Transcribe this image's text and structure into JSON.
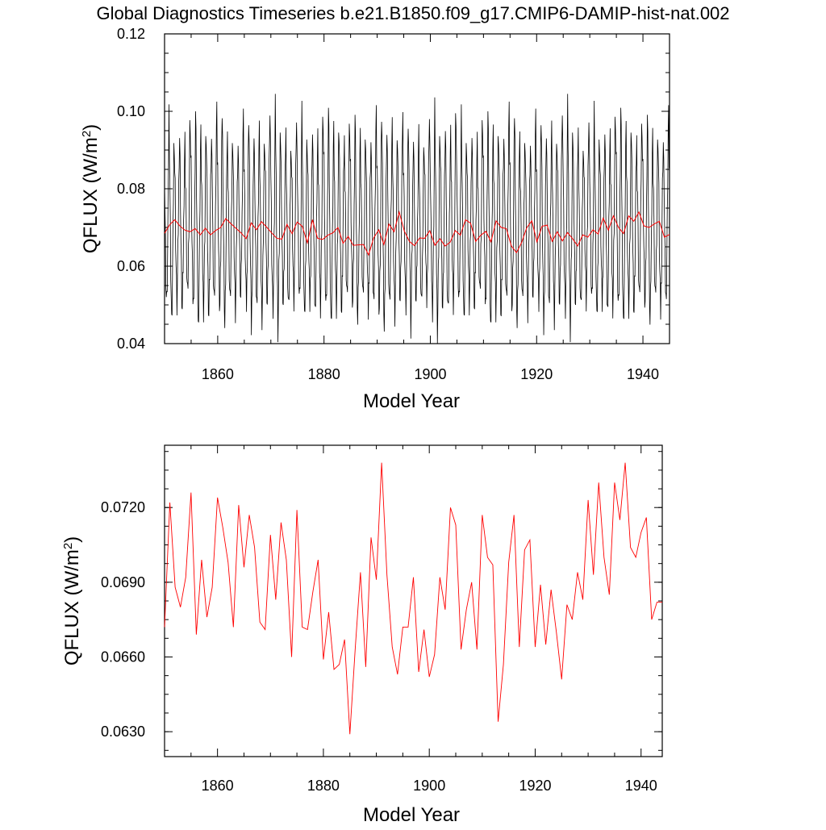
{
  "title": "Global Diagnostics Timeseries b.e21.B1850.f09_g17.CMIP6-DAMIP-hist-nat.002",
  "chart_data": [
    {
      "type": "line",
      "ylabel_main": "QFLUX (W/m",
      "ylabel_sup": "2",
      "ylabel_close": ")",
      "xlabel": "Model Year",
      "xlim": [
        1850,
        1945
      ],
      "ylim": [
        0.04,
        0.12
      ],
      "x_ticks": [
        "1860",
        "1880",
        "1900",
        "1920",
        "1940"
      ],
      "y_ticks": [
        "0.04",
        "0.06",
        "0.08",
        "0.10",
        "0.12"
      ],
      "grid": false,
      "series": [
        {
          "color": "#000000",
          "note_resolution": "monthly",
          "values": [
            0.085,
            0.075,
            0.065,
            0.058,
            0.052,
            0.05,
            0.056,
            0.064,
            0.074,
            0.088,
            0.1,
            0.092,
            0.082,
            0.07,
            0.06,
            0.052,
            0.044,
            0.05,
            0.058,
            0.066,
            0.078,
            0.09,
            0.093,
            0.085,
            0.08,
            0.068,
            0.06,
            0.054,
            0.05,
            0.055,
            0.062,
            0.07,
            0.08,
            0.09,
            0.094,
            0.086,
            0.078,
            0.066,
            0.058,
            0.052,
            0.048,
            0.054,
            0.06,
            0.07,
            0.08,
            0.088,
            0.092,
            0.084,
            0.08,
            0.068,
            0.06,
            0.055,
            0.051,
            0.056,
            0.064,
            0.072,
            0.084,
            0.095,
            0.098,
            0.088
          ],
          "red_annual_overlay": true
        },
        {
          "color": "#ff0000",
          "values": [
            0.0685,
            0.0707,
            0.072,
            0.0704,
            0.0693,
            0.0689,
            0.0697,
            0.0681,
            0.0698,
            0.0681,
            0.0692,
            0.07,
            0.0723,
            0.071,
            0.0698,
            0.0686,
            0.0671,
            0.0712,
            0.0694,
            0.0715,
            0.0701,
            0.0686,
            0.0672,
            0.067,
            0.0708,
            0.0684,
            0.0714,
            0.0703,
            0.066,
            0.072,
            0.0672,
            0.0669,
            0.068,
            0.0686,
            0.07,
            0.0659,
            0.0677,
            0.0654,
            0.0655,
            0.0656,
            0.0629,
            0.0673,
            0.0694,
            0.0656,
            0.0709,
            0.0689,
            0.074,
            0.0691,
            0.0664,
            0.0653,
            0.0673,
            0.0672,
            0.0692,
            0.0654,
            0.0671,
            0.0652,
            0.0662,
            0.0692,
            0.068,
            0.072,
            0.0711,
            0.0664,
            0.068,
            0.069,
            0.0663,
            0.0717,
            0.07,
            0.0697,
            0.0652,
            0.0635,
            0.0661,
            0.0699,
            0.0717,
            0.0663,
            0.0703,
            0.0706,
            0.0664,
            0.0689,
            0.0665,
            0.0687,
            0.0671,
            0.0652,
            0.0681,
            0.0675,
            0.0694,
            0.0683,
            0.0724,
            0.0693,
            0.073,
            0.07,
            0.0684,
            0.073,
            0.0716,
            0.074,
            0.0704,
            0.07,
            0.0709,
            0.0716,
            0.0675,
            0.0682
          ]
        }
      ]
    },
    {
      "type": "line",
      "ylabel_main": "QFLUX (W/m",
      "ylabel_sup": "2",
      "ylabel_close": ")",
      "xlabel": "Model Year",
      "xlim": [
        1850,
        1944
      ],
      "ylim": [
        0.062,
        0.0745
      ],
      "x_ticks": [
        "1860",
        "1880",
        "1900",
        "1920",
        "1940"
      ],
      "y_ticks": [
        "0.0630",
        "0.0660",
        "0.0690",
        "0.0720"
      ],
      "grid": false,
      "series": [
        {
          "color": "#ff0000",
          "x": [
            1850,
            1851,
            1852,
            1853,
            1854,
            1855,
            1856,
            1857,
            1858,
            1859,
            1860,
            1861,
            1862,
            1863,
            1864,
            1865,
            1866,
            1867,
            1868,
            1869,
            1870,
            1871,
            1872,
            1873,
            1874,
            1875,
            1876,
            1877,
            1878,
            1879,
            1880,
            1881,
            1882,
            1883,
            1884,
            1885,
            1886,
            1887,
            1888,
            1889,
            1890,
            1891,
            1892,
            1893,
            1894,
            1895,
            1896,
            1897,
            1898,
            1899,
            1900,
            1901,
            1902,
            1903,
            1904,
            1905,
            1906,
            1907,
            1908,
            1909,
            1910,
            1911,
            1912,
            1913,
            1914,
            1915,
            1916,
            1917,
            1918,
            1919,
            1920,
            1921,
            1922,
            1923,
            1924,
            1925,
            1926,
            1927,
            1928,
            1929,
            1930,
            1931,
            1932,
            1933,
            1934,
            1935,
            1936,
            1937,
            1938,
            1939,
            1940,
            1941,
            1942,
            1943,
            1944
          ],
          "values": [
            0.0672,
            0.0722,
            0.0688,
            0.068,
            0.0692,
            0.0726,
            0.0669,
            0.0699,
            0.0676,
            0.0688,
            0.0724,
            0.0712,
            0.0698,
            0.0672,
            0.0721,
            0.0696,
            0.0717,
            0.0704,
            0.0674,
            0.0671,
            0.0709,
            0.0683,
            0.0714,
            0.0699,
            0.066,
            0.0719,
            0.0672,
            0.0671,
            0.0686,
            0.0699,
            0.0659,
            0.0678,
            0.0655,
            0.0657,
            0.0667,
            0.0629,
            0.0663,
            0.0694,
            0.0656,
            0.0708,
            0.0691,
            0.0738,
            0.0693,
            0.0664,
            0.0653,
            0.0672,
            0.0672,
            0.0692,
            0.0654,
            0.0671,
            0.0652,
            0.0661,
            0.0692,
            0.0679,
            0.072,
            0.0713,
            0.0663,
            0.0679,
            0.069,
            0.0663,
            0.0717,
            0.07,
            0.0697,
            0.0634,
            0.0657,
            0.0698,
            0.0717,
            0.0664,
            0.0703,
            0.0707,
            0.0664,
            0.0689,
            0.0665,
            0.0687,
            0.067,
            0.0651,
            0.0681,
            0.0675,
            0.0694,
            0.0683,
            0.0723,
            0.0693,
            0.073,
            0.07,
            0.0685,
            0.073,
            0.0715,
            0.0738,
            0.0704,
            0.07,
            0.071,
            0.0716,
            0.0675,
            0.0682,
            0.0682
          ]
        }
      ]
    }
  ]
}
